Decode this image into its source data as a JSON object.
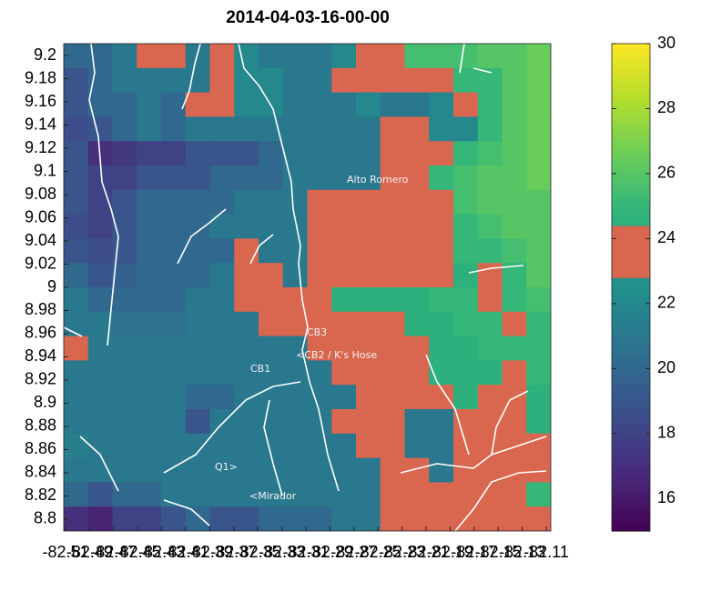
{
  "chart_data": {
    "type": "heatmap",
    "title": "2014-04-03-16-00-00",
    "xlim": [
      -82.5115,
      -82.1062
    ],
    "ylim": [
      8.7898,
      9.2102
    ],
    "xticks": [
      -82.51,
      -82.49,
      -82.47,
      -82.45,
      -82.43,
      -82.41,
      -82.39,
      -82.37,
      -82.35,
      -82.33,
      -82.31,
      -82.29,
      -82.27,
      -82.25,
      -82.23,
      -82.21,
      -82.19,
      -82.17,
      -82.15,
      -82.13,
      -82.11
    ],
    "yticks": [
      9.2,
      9.18,
      9.16,
      9.14,
      9.12,
      9.1,
      9.08,
      9.06,
      9.04,
      9.02,
      9,
      8.98,
      8.96,
      8.94,
      8.92,
      8.9,
      8.88,
      8.86,
      8.84,
      8.82,
      8.8
    ],
    "colormap": "viridis",
    "highlight_range": [
      22.8,
      24.4
    ],
    "highlight_color": "#d9664f",
    "clim": [
      15,
      30
    ],
    "cticks": [
      16,
      18,
      20,
      22,
      24,
      26,
      28,
      30
    ],
    "annotations": [
      "Alto Romero",
      "CB3",
      "<CB2 / K's Hose",
      "CB1",
      "Q1>",
      "<Mirador"
    ],
    "z": [
      [
        20,
        20,
        21,
        23.5,
        23.5,
        21,
        23.5,
        22,
        21,
        21,
        21,
        22,
        23.5,
        23.5,
        25.5,
        25.5,
        25.5,
        26,
        26,
        26.5
      ],
      [
        19,
        20,
        21,
        21,
        21,
        21,
        23.5,
        22,
        22,
        21,
        21,
        23.5,
        23.5,
        23.5,
        24,
        24,
        25,
        25,
        26,
        26.5
      ],
      [
        19,
        20,
        20,
        21,
        20,
        23.5,
        23,
        22,
        22,
        21,
        21,
        21,
        22,
        21,
        21,
        22,
        24,
        25,
        26,
        26.5
      ],
      [
        18.5,
        19,
        20,
        21,
        20,
        21,
        21,
        21,
        21,
        21,
        21,
        21,
        21,
        23,
        23,
        22,
        22,
        25,
        26,
        26.5
      ],
      [
        19,
        17,
        17.5,
        18,
        18,
        19,
        19,
        19,
        20,
        21,
        21,
        21,
        21,
        23.5,
        23.5,
        23,
        25,
        25.5,
        26,
        26.5
      ],
      [
        19,
        18,
        18,
        19,
        19,
        19,
        20,
        20,
        20,
        21,
        21,
        21,
        21,
        23.5,
        24,
        25,
        25.5,
        26,
        26,
        26.5
      ],
      [
        19,
        18,
        19,
        20,
        20,
        20,
        20,
        21,
        21,
        21,
        23.5,
        23.5,
        23.5,
        23.5,
        24,
        23.5,
        25.5,
        26,
        26,
        26
      ],
      [
        18.5,
        18,
        19,
        20,
        20,
        20,
        21,
        21,
        21,
        21,
        23.5,
        23.5,
        23.5,
        23.5,
        23.5,
        23.5,
        25,
        25.5,
        26,
        26
      ],
      [
        19,
        18.5,
        19,
        20,
        20,
        20,
        20,
        23.5,
        21,
        21,
        23.5,
        23.5,
        23.5,
        23.5,
        23.5,
        24,
        25,
        25,
        25.5,
        26
      ],
      [
        20,
        19,
        19.5,
        20,
        20,
        20,
        21,
        23.5,
        23.5,
        21,
        23.5,
        23.5,
        23.5,
        23.5,
        23.5,
        23.5,
        24.5,
        23.5,
        25,
        26
      ],
      [
        21,
        20,
        20,
        20,
        20,
        21,
        21,
        23.5,
        23.5,
        23.5,
        23.5,
        24.5,
        24.5,
        24.5,
        24.5,
        25,
        25,
        23.5,
        25,
        25.5
      ],
      [
        21,
        21,
        20.5,
        20.5,
        20.5,
        21,
        21,
        21,
        23.5,
        23.5,
        23.5,
        23.5,
        23.5,
        23.5,
        24.5,
        24.5,
        25,
        25,
        23.5,
        25
      ],
      [
        23.5,
        21,
        21,
        21,
        21,
        21,
        21,
        21,
        21,
        21,
        23.5,
        23.5,
        23.5,
        23.5,
        23.5,
        24.5,
        24.5,
        25,
        25,
        25
      ],
      [
        21,
        21,
        21,
        21,
        21,
        21,
        21,
        21,
        21,
        21,
        21,
        23.5,
        23.5,
        23.5,
        23.5,
        24.5,
        24.5,
        24.5,
        24,
        25
      ],
      [
        21,
        21,
        21,
        21,
        21,
        20,
        20,
        21,
        21,
        21,
        21,
        21,
        23.5,
        23.5,
        23.5,
        23.5,
        24.5,
        24,
        24,
        24.5
      ],
      [
        21,
        21,
        21,
        21,
        21,
        19,
        21,
        21,
        21,
        21,
        21,
        23,
        23.5,
        23.5,
        21,
        21,
        24,
        24,
        23.5,
        24.5
      ],
      [
        21.5,
        21,
        21,
        21,
        21,
        21,
        21,
        21,
        21,
        21,
        21,
        21,
        23.5,
        23.5,
        21,
        21,
        24,
        24,
        23.5,
        23.5
      ],
      [
        21,
        21,
        21,
        21,
        21,
        21,
        21,
        21,
        21,
        21,
        21,
        21,
        21,
        23.5,
        23.5,
        21,
        23.5,
        23.5,
        23.5,
        23.5
      ],
      [
        20,
        19,
        20,
        20,
        21,
        21,
        21,
        21,
        21,
        21,
        21,
        21,
        21,
        23.5,
        23.5,
        23.5,
        23.5,
        23.5,
        23.5,
        25
      ],
      [
        17,
        16.5,
        18,
        18,
        19,
        20,
        19,
        19,
        20,
        20,
        20,
        21,
        21,
        23.5,
        23.5,
        23.5,
        23.5,
        23.5,
        23.5,
        23.5
      ]
    ]
  }
}
